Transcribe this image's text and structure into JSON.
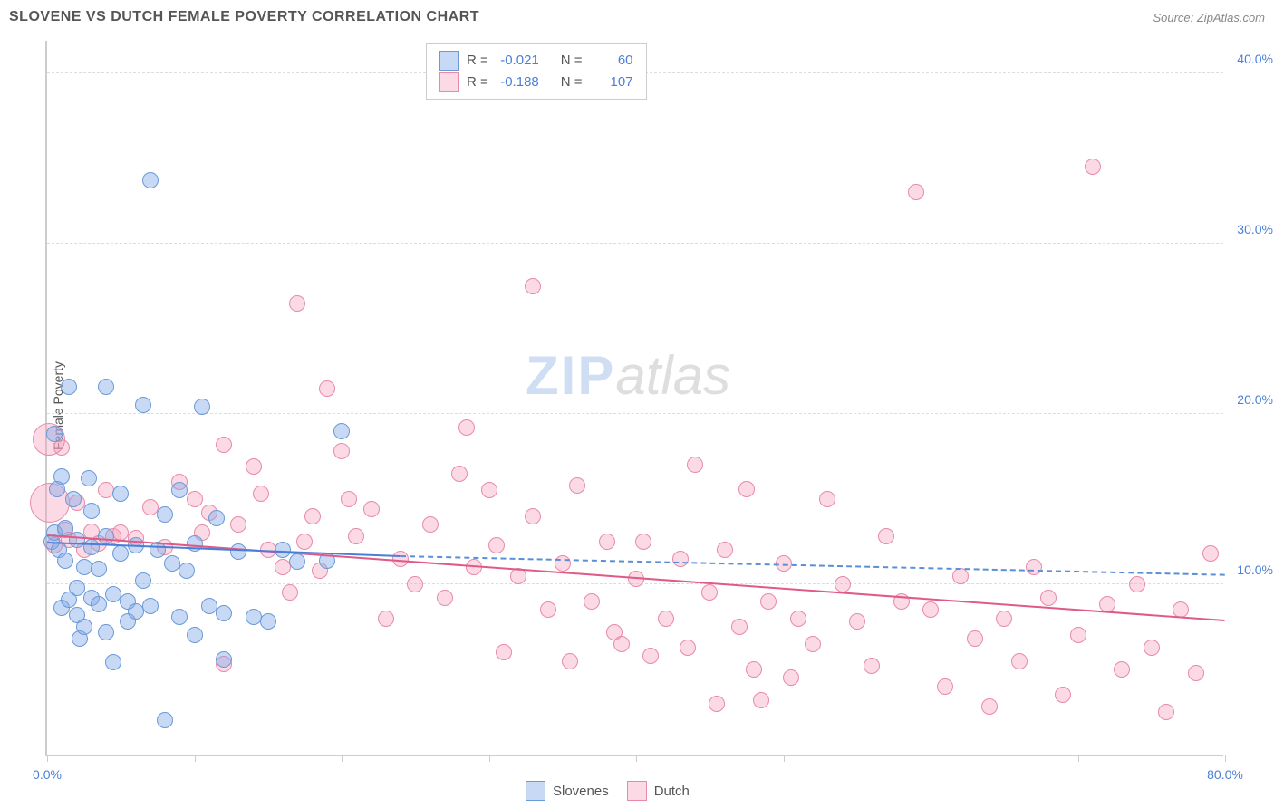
{
  "header": {
    "title": "SLOVENE VS DUTCH FEMALE POVERTY CORRELATION CHART",
    "source": "Source: ZipAtlas.com"
  },
  "watermark": {
    "part1": "ZIP",
    "part2": "atlas"
  },
  "chart": {
    "type": "scatter",
    "y_axis_label": "Female Poverty",
    "background_color": "#ffffff",
    "grid_color": "#dddddd",
    "axis_color": "#cccccc",
    "x_range": [
      0,
      80
    ],
    "y_range": [
      0,
      42
    ],
    "x_ticks": [
      0,
      10,
      20,
      30,
      40,
      50,
      60,
      70,
      80
    ],
    "x_tick_labels_shown": {
      "0": "0.0%",
      "80": "80.0%"
    },
    "y_gridlines": [
      10,
      20,
      30,
      40
    ],
    "y_tick_labels": {
      "10": "10.0%",
      "20": "20.0%",
      "30": "30.0%",
      "40": "40.0%"
    },
    "series": {
      "slovenes": {
        "label": "Slovenes",
        "fill_color": "rgba(130,170,230,0.45)",
        "stroke_color": "#6a9ad8",
        "marker_radius": 9,
        "R": "-0.021",
        "N": "60",
        "trend": {
          "y_at_x0": 12.6,
          "y_at_x24": 11.8,
          "solid_color": "#4a7fd8",
          "dashed_extend_to_x": 80,
          "y_at_x80": 10.7,
          "dashed_color": "#5a8fd8"
        },
        "points": [
          [
            0.3,
            12.5
          ],
          [
            0.5,
            13.0
          ],
          [
            0.5,
            18.8
          ],
          [
            0.7,
            15.6
          ],
          [
            0.8,
            12.0
          ],
          [
            1.0,
            8.6
          ],
          [
            1.0,
            16.3
          ],
          [
            1.2,
            11.4
          ],
          [
            1.2,
            13.3
          ],
          [
            1.5,
            9.1
          ],
          [
            1.5,
            21.6
          ],
          [
            1.8,
            15.0
          ],
          [
            2.0,
            8.2
          ],
          [
            2.0,
            9.8
          ],
          [
            2.0,
            12.6
          ],
          [
            2.2,
            6.8
          ],
          [
            2.5,
            11.0
          ],
          [
            2.5,
            7.5
          ],
          [
            2.8,
            16.2
          ],
          [
            3.0,
            9.2
          ],
          [
            3.0,
            12.2
          ],
          [
            3.0,
            14.3
          ],
          [
            3.5,
            8.8
          ],
          [
            3.5,
            10.9
          ],
          [
            4.0,
            21.6
          ],
          [
            4.0,
            7.2
          ],
          [
            4.0,
            12.8
          ],
          [
            4.5,
            9.4
          ],
          [
            4.5,
            5.4
          ],
          [
            5.0,
            15.3
          ],
          [
            5.0,
            11.8
          ],
          [
            5.5,
            9.0
          ],
          [
            5.5,
            7.8
          ],
          [
            6.0,
            12.3
          ],
          [
            6.0,
            8.4
          ],
          [
            6.5,
            20.5
          ],
          [
            6.5,
            10.2
          ],
          [
            7.0,
            33.7
          ],
          [
            7.0,
            8.7
          ],
          [
            7.5,
            12.0
          ],
          [
            8.0,
            2.0
          ],
          [
            8.0,
            14.1
          ],
          [
            8.5,
            11.2
          ],
          [
            9.0,
            8.1
          ],
          [
            9.0,
            15.5
          ],
          [
            9.5,
            10.8
          ],
          [
            10.0,
            7.0
          ],
          [
            10.0,
            12.4
          ],
          [
            10.5,
            20.4
          ],
          [
            11.0,
            8.7
          ],
          [
            11.5,
            13.9
          ],
          [
            12.0,
            5.6
          ],
          [
            12.0,
            8.3
          ],
          [
            13.0,
            11.9
          ],
          [
            14.0,
            8.1
          ],
          [
            15.0,
            7.8
          ],
          [
            16.0,
            12.0
          ],
          [
            17.0,
            11.3
          ],
          [
            19.0,
            11.4
          ],
          [
            20.0,
            19.0
          ]
        ]
      },
      "dutch": {
        "label": "Dutch",
        "fill_color": "rgba(245,160,190,0.40)",
        "stroke_color": "#e88aa8",
        "marker_radius": 9,
        "R": "-0.188",
        "N": "107",
        "trend": {
          "y_at_x0": 13.0,
          "y_at_x80": 8.0,
          "solid_color": "#e05a88"
        },
        "points": [
          [
            0.5,
            12.3
          ],
          [
            1.0,
            18.0
          ],
          [
            1.2,
            13.2
          ],
          [
            1.5,
            12.6
          ],
          [
            2.0,
            14.8
          ],
          [
            2.5,
            12.0
          ],
          [
            3.0,
            13.1
          ],
          [
            3.5,
            12.4
          ],
          [
            4.0,
            15.5
          ],
          [
            4.5,
            12.8
          ],
          [
            5.0,
            13.0
          ],
          [
            6.0,
            12.7
          ],
          [
            7.0,
            14.5
          ],
          [
            8.0,
            12.2
          ],
          [
            9.0,
            16.0
          ],
          [
            10.0,
            15.0
          ],
          [
            10.5,
            13.0
          ],
          [
            11.0,
            14.2
          ],
          [
            12.0,
            18.2
          ],
          [
            12.0,
            5.3
          ],
          [
            13.0,
            13.5
          ],
          [
            14.0,
            16.9
          ],
          [
            14.5,
            15.3
          ],
          [
            15.0,
            12.0
          ],
          [
            16.0,
            11.0
          ],
          [
            16.5,
            9.5
          ],
          [
            17.0,
            26.5
          ],
          [
            17.5,
            12.5
          ],
          [
            18.0,
            14.0
          ],
          [
            18.5,
            10.8
          ],
          [
            19.0,
            21.5
          ],
          [
            20.0,
            17.8
          ],
          [
            20.5,
            15.0
          ],
          [
            21.0,
            12.8
          ],
          [
            22.0,
            14.4
          ],
          [
            23.0,
            8.0
          ],
          [
            24.0,
            11.5
          ],
          [
            25.0,
            10.0
          ],
          [
            26.0,
            13.5
          ],
          [
            27.0,
            9.2
          ],
          [
            28.0,
            16.5
          ],
          [
            28.5,
            19.2
          ],
          [
            29.0,
            11.0
          ],
          [
            30.0,
            15.5
          ],
          [
            30.5,
            12.3
          ],
          [
            31.0,
            6.0
          ],
          [
            32.0,
            10.5
          ],
          [
            33.0,
            27.5
          ],
          [
            33.0,
            14.0
          ],
          [
            34.0,
            8.5
          ],
          [
            35.0,
            11.2
          ],
          [
            35.5,
            5.5
          ],
          [
            36.0,
            15.8
          ],
          [
            37.0,
            9.0
          ],
          [
            38.0,
            12.5
          ],
          [
            38.5,
            7.2
          ],
          [
            39.0,
            6.5
          ],
          [
            40.0,
            10.3
          ],
          [
            40.5,
            12.5
          ],
          [
            41.0,
            5.8
          ],
          [
            42.0,
            8.0
          ],
          [
            43.0,
            11.5
          ],
          [
            43.5,
            6.3
          ],
          [
            44.0,
            17.0
          ],
          [
            45.0,
            9.5
          ],
          [
            45.5,
            3.0
          ],
          [
            46.0,
            12.0
          ],
          [
            47.0,
            7.5
          ],
          [
            47.5,
            15.6
          ],
          [
            48.0,
            5.0
          ],
          [
            48.5,
            3.2
          ],
          [
            49.0,
            9.0
          ],
          [
            50.0,
            11.2
          ],
          [
            50.5,
            4.5
          ],
          [
            51.0,
            8.0
          ],
          [
            52.0,
            6.5
          ],
          [
            53.0,
            15.0
          ],
          [
            54.0,
            10.0
          ],
          [
            55.0,
            7.8
          ],
          [
            56.0,
            5.2
          ],
          [
            57.0,
            12.8
          ],
          [
            58.0,
            9.0
          ],
          [
            59.0,
            33.0
          ],
          [
            60.0,
            8.5
          ],
          [
            61.0,
            4.0
          ],
          [
            62.0,
            10.5
          ],
          [
            63.0,
            6.8
          ],
          [
            64.0,
            2.8
          ],
          [
            65.0,
            8.0
          ],
          [
            66.0,
            5.5
          ],
          [
            67.0,
            11.0
          ],
          [
            68.0,
            9.2
          ],
          [
            69.0,
            3.5
          ],
          [
            70.0,
            7.0
          ],
          [
            71.0,
            34.5
          ],
          [
            72.0,
            8.8
          ],
          [
            73.0,
            5.0
          ],
          [
            74.0,
            10.0
          ],
          [
            75.0,
            6.3
          ],
          [
            76.0,
            2.5
          ],
          [
            77.0,
            8.5
          ],
          [
            78.0,
            4.8
          ],
          [
            79.0,
            11.8
          ]
        ],
        "large_points": [
          {
            "x": 0.2,
            "y": 14.8,
            "r": 22
          },
          {
            "x": 0.1,
            "y": 18.5,
            "r": 18
          }
        ]
      }
    },
    "legend_top": {
      "row1": {
        "r_label": "R =",
        "n_label": "N ="
      },
      "row2": {
        "r_label": "R =",
        "n_label": "N ="
      }
    }
  }
}
